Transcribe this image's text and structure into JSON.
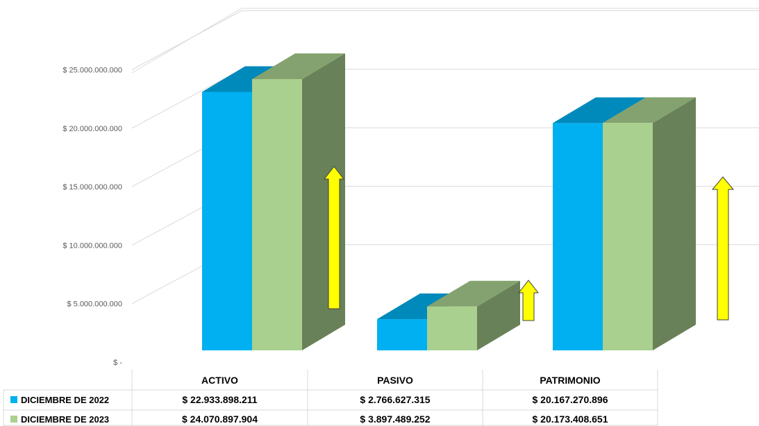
{
  "chart_data": {
    "type": "bar",
    "categories": [
      "ACTIVO",
      "PASIVO",
      "PATRIMONIO"
    ],
    "series": [
      {
        "name": "DICIEMBRE  DE 2022",
        "values": [
          22933898211,
          2766627315,
          20167270896
        ],
        "labels": [
          "$ 22.933.898.211",
          "$ 2.766.627.315",
          "$ 20.167.270.896"
        ],
        "color": "#00B0F0"
      },
      {
        "name": "DICIEMBRE DE 2023",
        "values": [
          24070897904,
          3897489252,
          20173408651
        ],
        "labels": [
          "$ 24.070.897.904",
          "$ 3.897.489.252",
          "$ 20.173.408.651"
        ],
        "color": "#A9D08E"
      }
    ],
    "y_ticks": [
      0,
      5000000000,
      10000000000,
      15000000000,
      20000000000,
      25000000000
    ],
    "y_tick_labels": [
      "$ -",
      "$ 5.000.000.000",
      "$ 10.000.000.000",
      "$ 15.000.000.000",
      "$ 20.000.000.000",
      "$ 25.000.000.000"
    ],
    "ylim": [
      0,
      25000000000
    ],
    "grid": true,
    "legend": "data-table",
    "arrow_color": "#FFFF00"
  }
}
